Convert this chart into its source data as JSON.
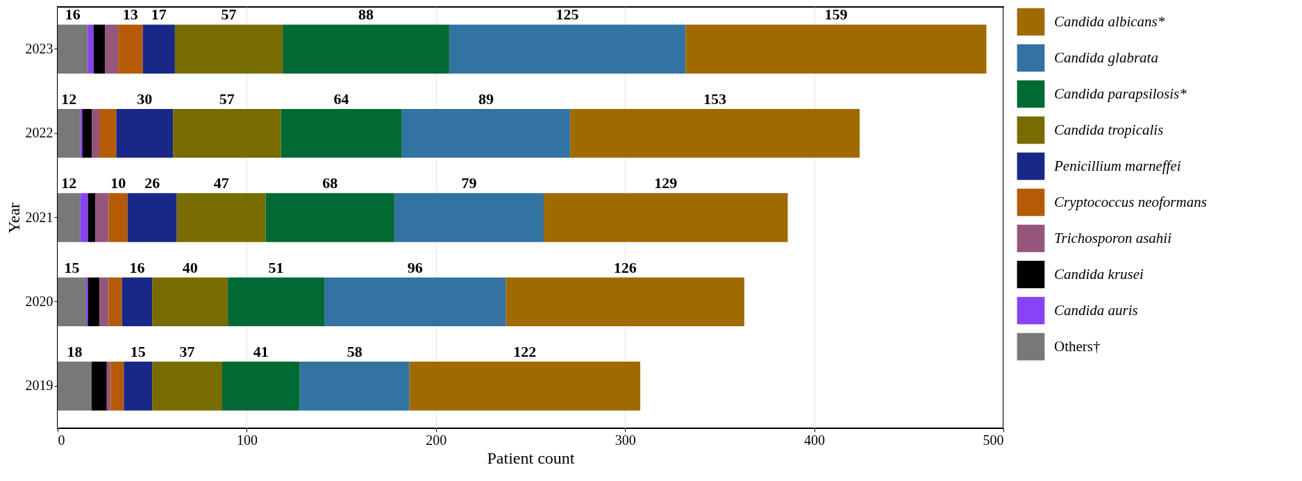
{
  "chart_data": {
    "type": "bar",
    "orientation": "horizontal",
    "stacked": true,
    "xlabel": "Patient count",
    "ylabel": "Year",
    "categories": [
      "2023",
      "2022",
      "2021",
      "2020",
      "2019"
    ],
    "xlim": [
      0,
      500
    ],
    "xticks": [
      0,
      100,
      200,
      300,
      400,
      500
    ],
    "grid": "x",
    "legend": "right",
    "series": [
      {
        "name": "Others†",
        "color": "#787878",
        "values": [
          16,
          12,
          12,
          15,
          18
        ],
        "value_labels": [
          "16",
          "12",
          "12",
          "15",
          "18"
        ]
      },
      {
        "name": "Candida auris",
        "color": "#8843f2",
        "values": [
          3,
          1,
          4,
          1,
          0
        ],
        "value_labels": [
          null,
          null,
          null,
          null,
          null
        ]
      },
      {
        "name": "Candida krusei",
        "color": "#000000",
        "values": [
          6,
          5,
          4,
          6,
          8
        ],
        "value_labels": [
          null,
          null,
          null,
          null,
          null
        ]
      },
      {
        "name": "Trichosporon asahii",
        "color": "#95567b",
        "values": [
          7,
          4,
          7,
          5,
          2
        ],
        "value_labels": [
          null,
          null,
          null,
          null,
          null
        ]
      },
      {
        "name": "Cryptococcus neoformans",
        "color": "#b55b07",
        "values": [
          13,
          9,
          10,
          7,
          7
        ],
        "value_labels": [
          "13",
          null,
          "10",
          null,
          null
        ]
      },
      {
        "name": "Penicillium marneffei",
        "color": "#172886",
        "values": [
          17,
          30,
          26,
          16,
          15
        ],
        "value_labels": [
          "17",
          "30",
          "26",
          "16",
          "15"
        ]
      },
      {
        "name": "Candida tropicalis",
        "color": "#786c00",
        "values": [
          57,
          57,
          47,
          40,
          37
        ],
        "value_labels": [
          "57",
          "57",
          "47",
          "40",
          "37"
        ]
      },
      {
        "name": "Candida parapsilosis*",
        "color": "#006934",
        "values": [
          88,
          64,
          68,
          51,
          41
        ],
        "value_labels": [
          "88",
          "64",
          "68",
          "51",
          "41"
        ]
      },
      {
        "name": "Candida glabrata",
        "color": "#3373a1",
        "values": [
          125,
          89,
          79,
          96,
          58
        ],
        "value_labels": [
          "125",
          "89",
          "79",
          "96",
          "58"
        ]
      },
      {
        "name": "Candida albicans*",
        "color": "#a06a00",
        "values": [
          159,
          153,
          129,
          126,
          122
        ],
        "value_labels": [
          "159",
          "153",
          "129",
          "126",
          "122"
        ]
      }
    ]
  }
}
